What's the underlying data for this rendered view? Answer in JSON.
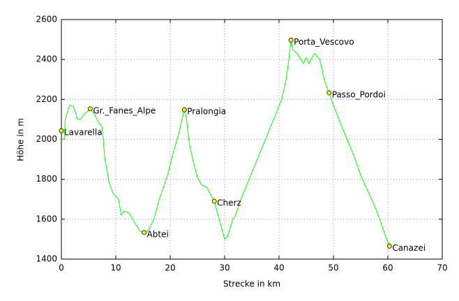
{
  "chart_data": {
    "type": "line",
    "x_label": "Strecke in km",
    "y_label": "Höhe in m",
    "x": [
      0,
      0.5,
      0.7,
      1.5,
      2.2,
      3,
      3.5,
      4.3,
      5.3,
      6,
      6.5,
      7.5,
      8.0,
      8.8,
      9.5,
      10.5,
      11,
      11.5,
      12.5,
      13.5,
      14.5,
      15.3,
      16,
      17,
      18,
      19.5,
      20.5,
      21.5,
      22,
      22.6,
      23,
      23.5,
      24.3,
      25,
      25.8,
      26.7,
      27.5,
      28.1,
      29,
      30,
      30.5,
      31.5,
      32,
      33,
      34.5,
      36,
      37.5,
      39,
      40.5,
      41.3,
      41.8,
      42.2,
      42.5,
      43.3,
      44,
      44.5,
      45,
      45.5,
      46.5,
      47.5,
      48.3,
      49.2,
      50,
      51,
      52.5,
      54,
      55,
      56,
      57,
      57.8,
      58.5,
      59.5,
      60.3
    ],
    "values": [
      2000,
      2000,
      2100,
      2170,
      2165,
      2100,
      2100,
      2130,
      2150,
      2130,
      2100,
      2060,
      1900,
      1780,
      1730,
      1700,
      1620,
      1640,
      1630,
      1580,
      1540,
      1530,
      1545,
      1600,
      1700,
      1820,
      1930,
      2020,
      2080,
      2150,
      2100,
      1980,
      1880,
      1810,
      1770,
      1760,
      1720,
      1690,
      1600,
      1500,
      1510,
      1600,
      1620,
      1700,
      1800,
      1900,
      2000,
      2100,
      2200,
      2300,
      2400,
      2500,
      2450,
      2430,
      2400,
      2380,
      2410,
      2380,
      2430,
      2400,
      2300,
      2230,
      2170,
      2100,
      2000,
      1900,
      1820,
      1760,
      1700,
      1650,
      1600,
      1520,
      1465
    ],
    "color": "#00ff00",
    "points": [
      {
        "label": "Lavarella",
        "x": 0,
        "y": 2043
      },
      {
        "label": "Gr._Fanes_Alpe",
        "x": 5.3,
        "y": 2153
      },
      {
        "label": "Abtei",
        "x": 15.2,
        "y": 1533
      },
      {
        "label": "Pralongia",
        "x": 22.6,
        "y": 2148
      },
      {
        "label": "Cherz",
        "x": 28.1,
        "y": 1690
      },
      {
        "label": "Porta_Vescovo",
        "x": 42.2,
        "y": 2497
      },
      {
        "label": "Passo_Pordoi",
        "x": 49.2,
        "y": 2233
      },
      {
        "label": "Canazei",
        "x": 60.3,
        "y": 1465
      }
    ],
    "point_color": "#ffff00",
    "xlim": [
      0,
      70
    ],
    "xticks": [
      0,
      10,
      20,
      30,
      40,
      50,
      60,
      70
    ],
    "ylim": [
      1400,
      2600
    ],
    "yticks": [
      1400,
      1600,
      1800,
      2000,
      2200,
      2400,
      2600
    ],
    "grid": true
  }
}
